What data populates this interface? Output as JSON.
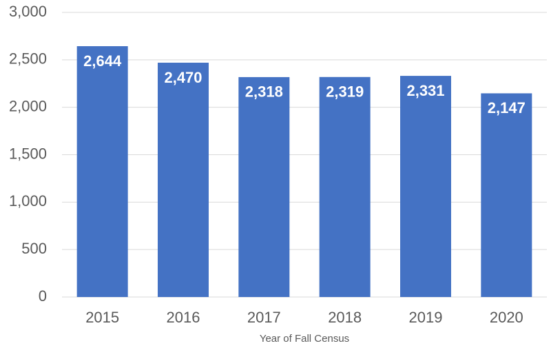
{
  "chart_data": {
    "type": "bar",
    "x_label": "Year of Fall Census",
    "categories": [
      "2015",
      "2016",
      "2017",
      "2018",
      "2019",
      "2020"
    ],
    "values": [
      2644,
      2470,
      2318,
      2319,
      2331,
      2147
    ],
    "value_labels": [
      "2,644",
      "2,470",
      "2,318",
      "2,319",
      "2,331",
      "2,147"
    ],
    "color": "#4472c4",
    "ylim": [
      0,
      3000
    ],
    "yticks": [
      0,
      500,
      {
        "value": 1000,
        "label": "1,000"
      },
      {
        "value": 1500,
        "label": "1,500"
      },
      {
        "value": 2000,
        "label": "2,000"
      },
      {
        "value": 2500,
        "label": "2,500"
      },
      {
        "value": 3000,
        "label": "3,000"
      }
    ],
    "grid": true
  }
}
